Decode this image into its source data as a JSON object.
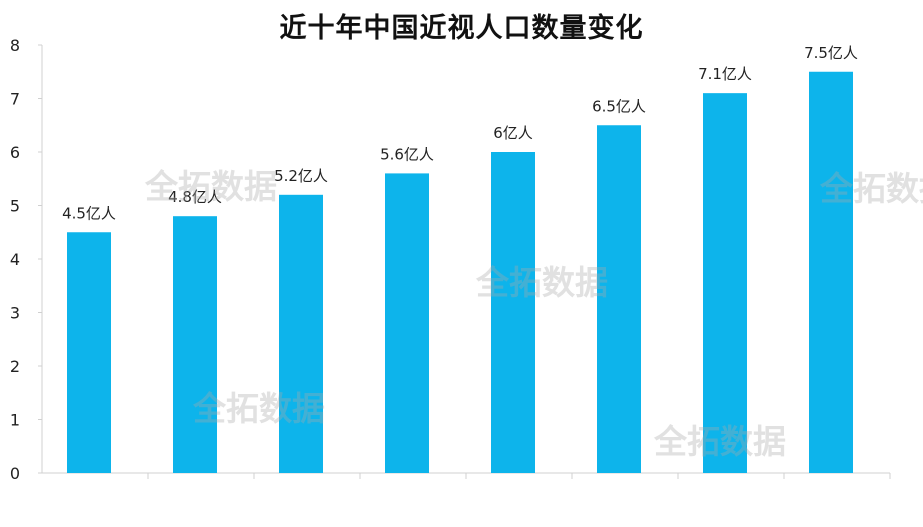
{
  "chart_data": {
    "type": "bar",
    "title": "近十年中国近视人口数量变化",
    "xlabel": "",
    "ylabel": "",
    "ylim": [
      0,
      8
    ],
    "yticks": [
      "0",
      "1",
      "2",
      "3",
      "4",
      "5",
      "6",
      "7",
      "8"
    ],
    "values": [
      4.5,
      4.8,
      5.2,
      5.6,
      6.0,
      6.5,
      7.1,
      7.5
    ],
    "data_labels": [
      "4.5亿人",
      "4.8亿人",
      "5.2亿人",
      "5.6亿人",
      "6亿人",
      "6.5亿人",
      "7.1亿人",
      "7.5亿人"
    ],
    "grid": false,
    "bar_color": "#0db4eb"
  },
  "watermark": {
    "text": "全拓数据",
    "color": "#aaaaaa"
  }
}
